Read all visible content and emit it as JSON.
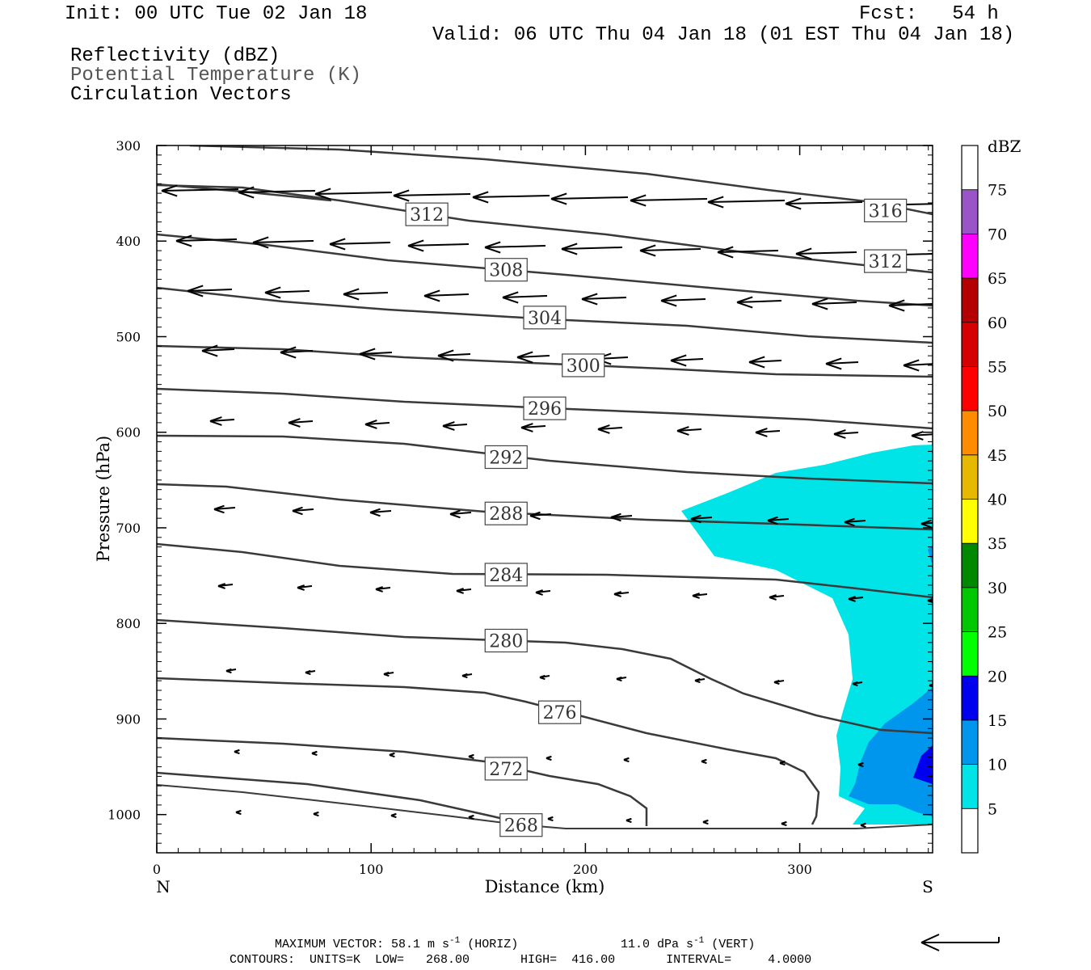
{
  "header": {
    "init": "Init: 00 UTC Tue 02 Jan 18",
    "fcst": "Fcst:   54 h",
    "valid": "Valid: 06 UTC Thu 04 Jan 18 (01 EST Thu 04 Jan 18)",
    "fields": [
      "Reflectivity (dBZ)",
      "Potential Temperature (K)",
      "Circulation Vectors"
    ]
  },
  "footer": {
    "max_vector": "MAXIMUM VECTOR:  58.1 m s",
    "max_vector_horiz": "(HORIZ)",
    "max_vector_vert": "11.0 dPa s",
    "max_vector_vert_tail": "(VERT)",
    "exp": "-1",
    "contours": "CONTOURS:  UNITS=K  LOW=   268.00       HIGH=  416.00       INTERVAL=     4.0000"
  },
  "colors": {
    "contour": "#3a3a3a",
    "potential_temp_text": "#555555"
  },
  "chart_data": {
    "type": "cross-section",
    "xlabel": "Distance (km)",
    "ylabel": "Pressure (hPa)",
    "x_range": [
      0,
      362
    ],
    "y_range": [
      1040,
      300
    ],
    "x_ticks": [
      0,
      100,
      200,
      300
    ],
    "y_ticks": [
      300,
      400,
      500,
      600,
      700,
      800,
      900,
      1000
    ],
    "x_end_labels": {
      "left": "N",
      "right": "S"
    },
    "colorbar": {
      "title": "dBZ",
      "levels": [
        5,
        10,
        15,
        20,
        25,
        30,
        35,
        40,
        45,
        50,
        55,
        60,
        65,
        70,
        75
      ],
      "colors": [
        "#ffffff",
        "#00e4e8",
        "#0096ee",
        "#0000ee",
        "#00ff00",
        "#00c800",
        "#008800",
        "#ffff00",
        "#e6b800",
        "#ff8c00",
        "#ff0000",
        "#d60000",
        "#b40000",
        "#ff00ff",
        "#9955c8",
        "#ffffff"
      ]
    },
    "contour_labels": [
      {
        "value": "316",
        "x": 340,
        "p": 368
      },
      {
        "value": "312",
        "x": 126,
        "p": 372
      },
      {
        "value": "312",
        "x": 340,
        "p": 421
      },
      {
        "value": "308",
        "x": 163,
        "p": 430
      },
      {
        "value": "304",
        "x": 181,
        "p": 480
      },
      {
        "value": "300",
        "x": 199,
        "p": 530
      },
      {
        "value": "296",
        "x": 181,
        "p": 575
      },
      {
        "value": "292",
        "x": 163,
        "p": 626
      },
      {
        "value": "288",
        "x": 163,
        "p": 685
      },
      {
        "value": "284",
        "x": 163,
        "p": 749
      },
      {
        "value": "280",
        "x": 163,
        "p": 818
      },
      {
        "value": "276",
        "x": 188,
        "p": 893
      },
      {
        "value": "272",
        "x": 163,
        "p": 952
      },
      {
        "value": "268",
        "x": 170,
        "p": 1011
      }
    ]
  }
}
